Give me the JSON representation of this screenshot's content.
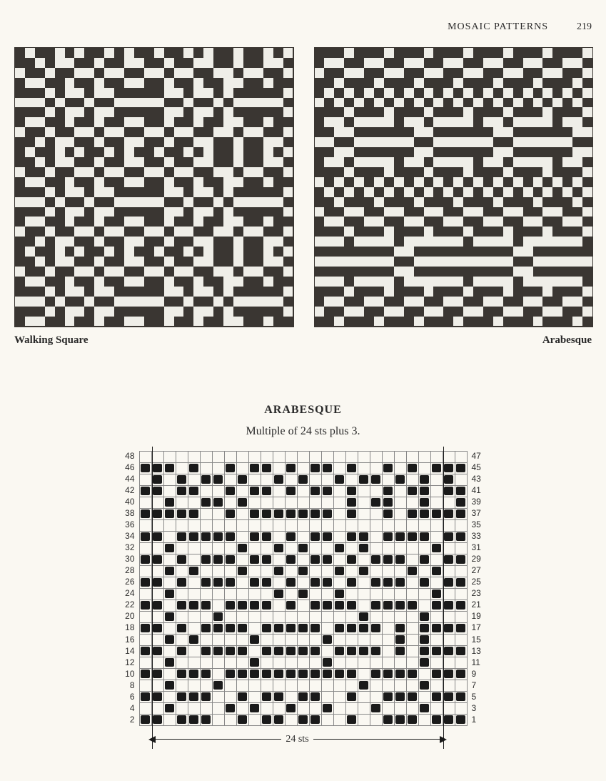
{
  "header": {
    "section": "MOSAIC PATTERNS",
    "page": "219"
  },
  "swatches": {
    "left_caption": "Walking Square",
    "right_caption": "Arabesque",
    "grid_size": 28,
    "colors": {
      "light": "#efeee8",
      "dark": "#3a3632"
    },
    "walking_square": [
      "1011010110101101101011011010",
      "1101001101100110110011011001",
      "0110110010011001001100100110",
      "1001101101100110110110011011",
      "1110100100111110010010111110",
      "0001011011000001101101000001",
      "1110100100111110010010111110",
      "1001101101100110110110011011",
      "0110110010011001001100100110",
      "1101001101100110110011011001",
      "1011010110101101101011011010",
      "1101001101100110110011011001",
      "0110110010011001001100100110",
      "1001101101100110110110011011",
      "1110100100111110010010111110",
      "0001011011000001101101000001",
      "1110100100111110010010111110",
      "1001101101100110110110011011",
      "0110110010011001001100100110",
      "1101001101100110110011011001",
      "1011010110101101101011011010",
      "1101001101100110110011011001",
      "0110110010011001001100100110",
      "1001101101100110110110011011",
      "1110100100111110010010111110",
      "0001011011000001101101000001",
      "1110100100111110010010111110",
      "1001101101100110110110011011"
    ],
    "arabesque_swatch": [
      "1110111011101110111011101110",
      "1001100110011001100110011001",
      "0110011001100110011001100110",
      "1101110111011101110111011101",
      "1010101010101010101010101010",
      "0101010101010101010101010101",
      "1110111011101110111011101110",
      "1001000010010000100100001001",
      "1100111111001111110011111100",
      "0011000000110000001100000011",
      "1100111111001111110011111100",
      "1001000010010000100100001001",
      "1110111011101110111011101110",
      "0101010101010101010101010101",
      "1010101010101010101010101010",
      "1101110111011101110111011101",
      "0110011001100110011001100110",
      "1001100110011001100110011001",
      "1110111011101110111011101110",
      "0001000010000001000010000001",
      "1111111100111111111100111111",
      "0000000011000000000011000000",
      "1111111100111111111100111111",
      "0001000010000001000010000001",
      "1110111011101110111011101110",
      "1001100110011001100110011001",
      "0110011001100110011001100110",
      "1101110111011101110111011101"
    ]
  },
  "chart": {
    "title": "ARABESQUE",
    "subtitle": "Multiple of 24 sts plus 3.",
    "cols": 27,
    "repeat_start_col": 1,
    "repeat_end_col": 25,
    "repeat_label": "24 sts",
    "left_row_labels": [
      "48",
      "46",
      "44",
      "42",
      "40",
      "38",
      "36",
      "34",
      "32",
      "30",
      "28",
      "26",
      "24",
      "22",
      "20",
      "18",
      "16",
      "14",
      "12",
      "10",
      "8",
      "6",
      "4",
      "2"
    ],
    "right_row_labels": [
      "47",
      "45",
      "43",
      "41",
      "39",
      "37",
      "35",
      "33",
      "31",
      "29",
      "27",
      "25",
      "23",
      "21",
      "19",
      "17",
      "15",
      "13",
      "11",
      "9",
      "7",
      "5",
      "3",
      "1"
    ],
    "rows": [
      "000000000000000000000000000",
      "111010010110101101001010111",
      "010101101001010010110101010",
      "110110010110101101001011011",
      "001001101000000001011001001",
      "111110010111111101001011111",
      "000000000000000000000000000",
      "110111110110101101101111011",
      "001000001001010010100000100",
      "110101110110101101011101011",
      "001010001001010010100010100",
      "110101110110101101011101011",
      "001000000001010010000000100",
      "110111011110101111011110111",
      "001000100000000000100001000",
      "110101111011111011110101111",
      "001010000100000100000101000",
      "110101111011111011110101111",
      "001000000100000100000001000",
      "110111011111111111011110111",
      "001000100000000000100001000",
      "110111001011011001001110111",
      "001000010100100100010001000",
      "110111001011011001001110111"
    ]
  }
}
